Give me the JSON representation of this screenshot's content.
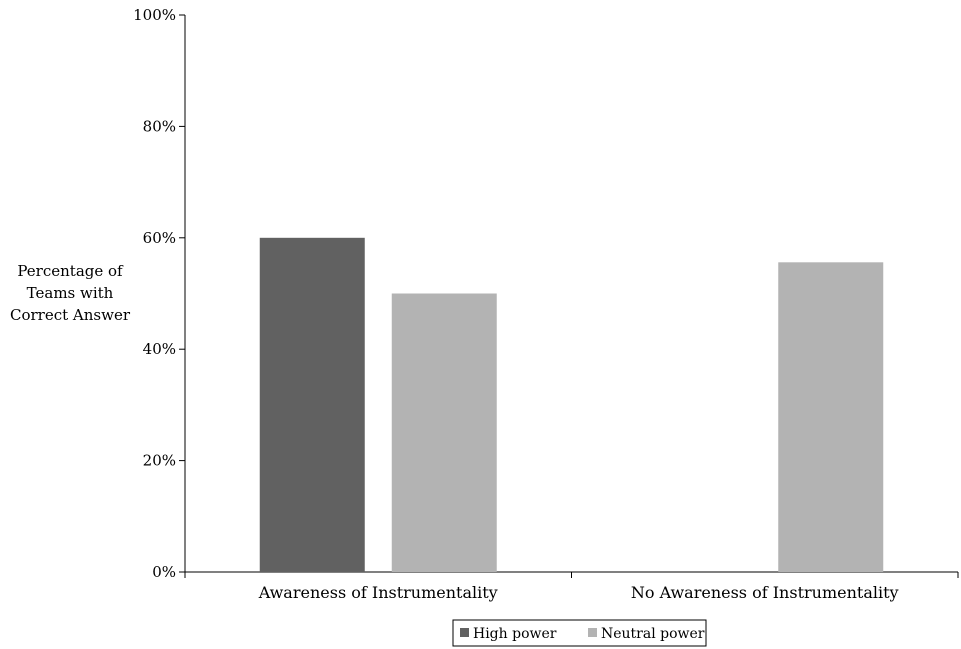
{
  "chart_data": {
    "type": "bar",
    "categories": [
      "Awareness of Instrumentality",
      "No Awareness of Instrumentality"
    ],
    "series": [
      {
        "name": "High power",
        "values": [
          60,
          0
        ],
        "color": "#616161"
      },
      {
        "name": "Neutral power",
        "values": [
          50,
          55.6
        ],
        "color": "#b3b3b3"
      }
    ],
    "ylabel_lines": [
      "Percentage of",
      "Teams with",
      "Correct Answer"
    ],
    "ylim": [
      0,
      100
    ],
    "yticks": [
      0,
      20,
      40,
      60,
      80,
      100
    ],
    "ytick_labels": [
      "0%",
      "20%",
      "40%",
      "60%",
      "80%",
      "100%"
    ],
    "grid": false,
    "legend": {
      "position": "bottom-center",
      "boxed": true
    }
  }
}
